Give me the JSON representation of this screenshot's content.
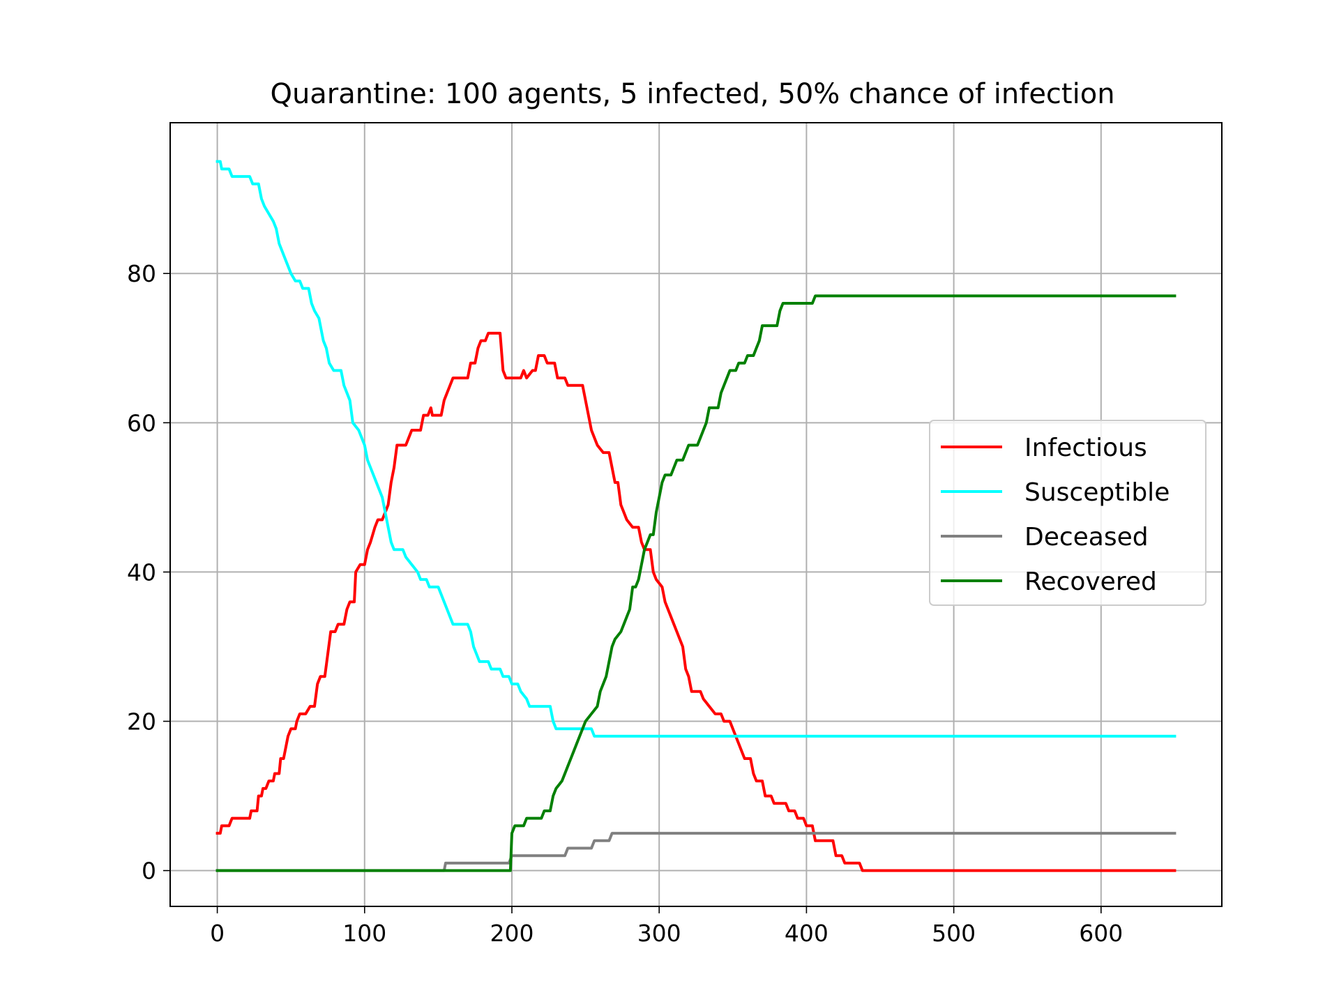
{
  "chart_data": {
    "type": "line",
    "title": "Quarantine: 100 agents, 5 infected, 50% chance of infection",
    "xlabel": "",
    "ylabel": "",
    "xlim": [
      -32,
      682
    ],
    "ylim": [
      -4.8,
      100.2
    ],
    "xticks": [
      0,
      100,
      200,
      300,
      400,
      500,
      600
    ],
    "yticks": [
      0,
      20,
      40,
      60,
      80
    ],
    "grid": true,
    "legend": {
      "position": "center-right"
    },
    "series": [
      {
        "name": "Infectious",
        "color": "#ff0000",
        "points": [
          [
            0,
            5
          ],
          [
            2,
            5
          ],
          [
            3,
            6
          ],
          [
            8,
            6
          ],
          [
            10,
            7
          ],
          [
            22,
            7
          ],
          [
            23,
            8
          ],
          [
            27,
            8
          ],
          [
            28,
            10
          ],
          [
            30,
            10
          ],
          [
            31,
            11
          ],
          [
            33,
            11
          ],
          [
            35,
            12
          ],
          [
            38,
            12
          ],
          [
            39,
            13
          ],
          [
            42,
            13
          ],
          [
            43,
            15
          ],
          [
            45,
            15
          ],
          [
            46,
            16
          ],
          [
            48,
            18
          ],
          [
            50,
            19
          ],
          [
            53,
            19
          ],
          [
            54,
            20
          ],
          [
            56,
            21
          ],
          [
            60,
            21
          ],
          [
            63,
            22
          ],
          [
            66,
            22
          ],
          [
            68,
            25
          ],
          [
            70,
            26
          ],
          [
            73,
            26
          ],
          [
            75,
            29
          ],
          [
            77,
            32
          ],
          [
            80,
            32
          ],
          [
            82,
            33
          ],
          [
            86,
            33
          ],
          [
            88,
            35
          ],
          [
            90,
            36
          ],
          [
            93,
            36
          ],
          [
            94,
            40
          ],
          [
            97,
            41
          ],
          [
            100,
            41
          ],
          [
            102,
            43
          ],
          [
            104,
            44
          ],
          [
            107,
            46
          ],
          [
            109,
            47
          ],
          [
            112,
            47
          ],
          [
            114,
            48
          ],
          [
            116,
            49
          ],
          [
            118,
            52
          ],
          [
            120,
            54
          ],
          [
            122,
            57
          ],
          [
            128,
            57
          ],
          [
            130,
            58
          ],
          [
            132,
            59
          ],
          [
            138,
            59
          ],
          [
            140,
            61
          ],
          [
            143,
            61
          ],
          [
            145,
            62
          ],
          [
            146,
            61
          ],
          [
            152,
            61
          ],
          [
            154,
            63
          ],
          [
            156,
            64
          ],
          [
            158,
            65
          ],
          [
            160,
            66
          ],
          [
            170,
            66
          ],
          [
            172,
            68
          ],
          [
            175,
            68
          ],
          [
            177,
            70
          ],
          [
            179,
            71
          ],
          [
            182,
            71
          ],
          [
            184,
            72
          ],
          [
            192,
            72
          ],
          [
            194,
            67
          ],
          [
            196,
            66
          ],
          [
            206,
            66
          ],
          [
            208,
            67
          ],
          [
            210,
            66
          ],
          [
            214,
            67
          ],
          [
            216,
            67
          ],
          [
            218,
            69
          ],
          [
            222,
            69
          ],
          [
            224,
            68
          ],
          [
            229,
            68
          ],
          [
            231,
            66
          ],
          [
            236,
            66
          ],
          [
            238,
            65
          ],
          [
            248,
            65
          ],
          [
            250,
            63
          ],
          [
            252,
            61
          ],
          [
            254,
            59
          ],
          [
            256,
            58
          ],
          [
            258,
            57
          ],
          [
            262,
            56
          ],
          [
            266,
            56
          ],
          [
            268,
            54
          ],
          [
            270,
            52
          ],
          [
            272,
            52
          ],
          [
            274,
            49
          ],
          [
            276,
            48
          ],
          [
            278,
            47
          ],
          [
            282,
            46
          ],
          [
            286,
            46
          ],
          [
            288,
            44
          ],
          [
            290,
            43
          ],
          [
            294,
            43
          ],
          [
            296,
            40
          ],
          [
            298,
            39
          ],
          [
            302,
            38
          ],
          [
            304,
            36
          ],
          [
            306,
            35
          ],
          [
            308,
            34
          ],
          [
            310,
            33
          ],
          [
            312,
            32
          ],
          [
            316,
            30
          ],
          [
            318,
            27
          ],
          [
            320,
            26
          ],
          [
            322,
            24
          ],
          [
            328,
            24
          ],
          [
            330,
            23
          ],
          [
            334,
            22
          ],
          [
            338,
            21
          ],
          [
            342,
            21
          ],
          [
            344,
            20
          ],
          [
            348,
            20
          ],
          [
            350,
            19
          ],
          [
            352,
            18
          ],
          [
            354,
            17
          ],
          [
            356,
            16
          ],
          [
            358,
            15
          ],
          [
            362,
            15
          ],
          [
            364,
            13
          ],
          [
            366,
            12
          ],
          [
            370,
            12
          ],
          [
            372,
            10
          ],
          [
            376,
            10
          ],
          [
            378,
            9
          ],
          [
            386,
            9
          ],
          [
            388,
            8
          ],
          [
            392,
            8
          ],
          [
            394,
            7
          ],
          [
            398,
            7
          ],
          [
            400,
            6
          ],
          [
            404,
            6
          ],
          [
            406,
            4
          ],
          [
            418,
            4
          ],
          [
            420,
            2
          ],
          [
            424,
            2
          ],
          [
            426,
            1
          ],
          [
            436,
            1
          ],
          [
            438,
            0
          ],
          [
            650,
            0
          ]
        ]
      },
      {
        "name": "Susceptible",
        "color": "#00ffff",
        "points": [
          [
            0,
            95
          ],
          [
            2,
            95
          ],
          [
            3,
            94
          ],
          [
            8,
            94
          ],
          [
            10,
            93
          ],
          [
            22,
            93
          ],
          [
            24,
            92
          ],
          [
            28,
            92
          ],
          [
            30,
            90
          ],
          [
            32,
            89
          ],
          [
            35,
            88
          ],
          [
            38,
            87
          ],
          [
            40,
            86
          ],
          [
            42,
            84
          ],
          [
            44,
            83
          ],
          [
            46,
            82
          ],
          [
            48,
            81
          ],
          [
            50,
            80
          ],
          [
            53,
            79
          ],
          [
            56,
            79
          ],
          [
            58,
            78
          ],
          [
            62,
            78
          ],
          [
            64,
            76
          ],
          [
            66,
            75
          ],
          [
            69,
            74
          ],
          [
            72,
            71
          ],
          [
            74,
            70
          ],
          [
            76,
            68
          ],
          [
            79,
            67
          ],
          [
            84,
            67
          ],
          [
            86,
            65
          ],
          [
            88,
            64
          ],
          [
            90,
            63
          ],
          [
            92,
            60
          ],
          [
            96,
            59
          ],
          [
            98,
            58
          ],
          [
            100,
            57
          ],
          [
            102,
            55
          ],
          [
            104,
            54
          ],
          [
            106,
            53
          ],
          [
            108,
            52
          ],
          [
            110,
            51
          ],
          [
            112,
            50
          ],
          [
            114,
            48
          ],
          [
            116,
            46
          ],
          [
            118,
            44
          ],
          [
            120,
            43
          ],
          [
            126,
            43
          ],
          [
            128,
            42
          ],
          [
            132,
            41
          ],
          [
            136,
            40
          ],
          [
            138,
            39
          ],
          [
            142,
            39
          ],
          [
            144,
            38
          ],
          [
            150,
            38
          ],
          [
            152,
            37
          ],
          [
            154,
            36
          ],
          [
            156,
            35
          ],
          [
            158,
            34
          ],
          [
            160,
            33
          ],
          [
            170,
            33
          ],
          [
            172,
            32
          ],
          [
            174,
            30
          ],
          [
            176,
            29
          ],
          [
            178,
            28
          ],
          [
            184,
            28
          ],
          [
            186,
            27
          ],
          [
            192,
            27
          ],
          [
            194,
            26
          ],
          [
            198,
            26
          ],
          [
            200,
            25
          ],
          [
            204,
            25
          ],
          [
            206,
            24
          ],
          [
            210,
            23
          ],
          [
            212,
            22
          ],
          [
            226,
            22
          ],
          [
            228,
            20
          ],
          [
            230,
            19
          ],
          [
            254,
            19
          ],
          [
            256,
            18
          ],
          [
            650,
            18
          ]
        ]
      },
      {
        "name": "Deceased",
        "color": "#808080",
        "points": [
          [
            0,
            0
          ],
          [
            154,
            0
          ],
          [
            155,
            1
          ],
          [
            198,
            1
          ],
          [
            200,
            2
          ],
          [
            236,
            2
          ],
          [
            238,
            3
          ],
          [
            254,
            3
          ],
          [
            256,
            4
          ],
          [
            266,
            4
          ],
          [
            268,
            5
          ],
          [
            650,
            5
          ]
        ]
      },
      {
        "name": "Recovered",
        "color": "#008000",
        "points": [
          [
            0,
            0
          ],
          [
            199,
            0
          ],
          [
            200,
            5
          ],
          [
            202,
            6
          ],
          [
            208,
            6
          ],
          [
            210,
            7
          ],
          [
            220,
            7
          ],
          [
            222,
            8
          ],
          [
            226,
            8
          ],
          [
            228,
            10
          ],
          [
            230,
            11
          ],
          [
            234,
            12
          ],
          [
            236,
            13
          ],
          [
            238,
            14
          ],
          [
            240,
            15
          ],
          [
            242,
            16
          ],
          [
            244,
            17
          ],
          [
            246,
            18
          ],
          [
            248,
            19
          ],
          [
            250,
            20
          ],
          [
            254,
            21
          ],
          [
            258,
            22
          ],
          [
            260,
            24
          ],
          [
            262,
            25
          ],
          [
            264,
            26
          ],
          [
            266,
            28
          ],
          [
            268,
            30
          ],
          [
            270,
            31
          ],
          [
            274,
            32
          ],
          [
            276,
            33
          ],
          [
            278,
            34
          ],
          [
            280,
            35
          ],
          [
            282,
            38
          ],
          [
            284,
            38
          ],
          [
            286,
            39
          ],
          [
            288,
            41
          ],
          [
            290,
            43
          ],
          [
            292,
            44
          ],
          [
            294,
            45
          ],
          [
            296,
            45
          ],
          [
            298,
            48
          ],
          [
            300,
            50
          ],
          [
            302,
            52
          ],
          [
            304,
            53
          ],
          [
            308,
            53
          ],
          [
            310,
            54
          ],
          [
            312,
            55
          ],
          [
            316,
            55
          ],
          [
            318,
            56
          ],
          [
            320,
            57
          ],
          [
            326,
            57
          ],
          [
            328,
            58
          ],
          [
            330,
            59
          ],
          [
            332,
            60
          ],
          [
            334,
            62
          ],
          [
            340,
            62
          ],
          [
            342,
            64
          ],
          [
            344,
            65
          ],
          [
            346,
            66
          ],
          [
            348,
            67
          ],
          [
            352,
            67
          ],
          [
            354,
            68
          ],
          [
            358,
            68
          ],
          [
            360,
            69
          ],
          [
            364,
            69
          ],
          [
            366,
            70
          ],
          [
            368,
            71
          ],
          [
            370,
            73
          ],
          [
            376,
            73
          ],
          [
            380,
            73
          ],
          [
            382,
            75
          ],
          [
            384,
            76
          ],
          [
            404,
            76
          ],
          [
            406,
            77
          ],
          [
            650,
            77
          ]
        ]
      }
    ]
  }
}
